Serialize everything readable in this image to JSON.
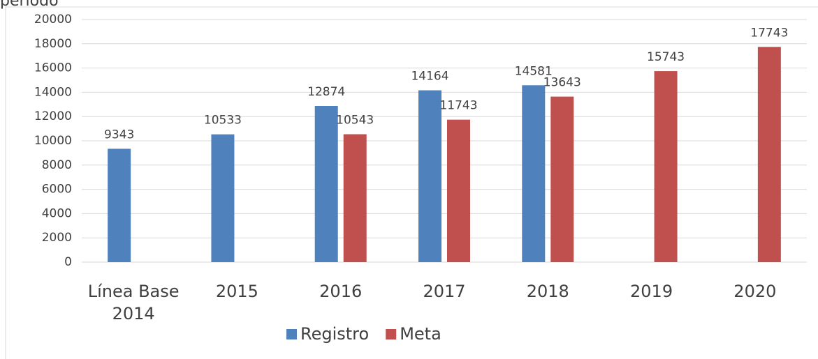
{
  "chart_data": {
    "type": "bar",
    "title": "periodo",
    "categories": [
      "Línea Base 2014",
      "2015",
      "2016",
      "2017",
      "2018",
      "2019",
      "2020"
    ],
    "series": [
      {
        "name": "Registro",
        "color": "#4f81bd",
        "values": [
          9343,
          10533,
          12874,
          14164,
          14581,
          null,
          null
        ]
      },
      {
        "name": "Meta",
        "color": "#c0504d",
        "values": [
          null,
          null,
          10543,
          11743,
          13643,
          15743,
          17743
        ]
      }
    ],
    "ylim": [
      0,
      20000
    ],
    "yticks": [
      0,
      2000,
      4000,
      6000,
      8000,
      10000,
      12000,
      14000,
      16000,
      18000,
      20000
    ],
    "grid": true,
    "legend": "bottom"
  }
}
